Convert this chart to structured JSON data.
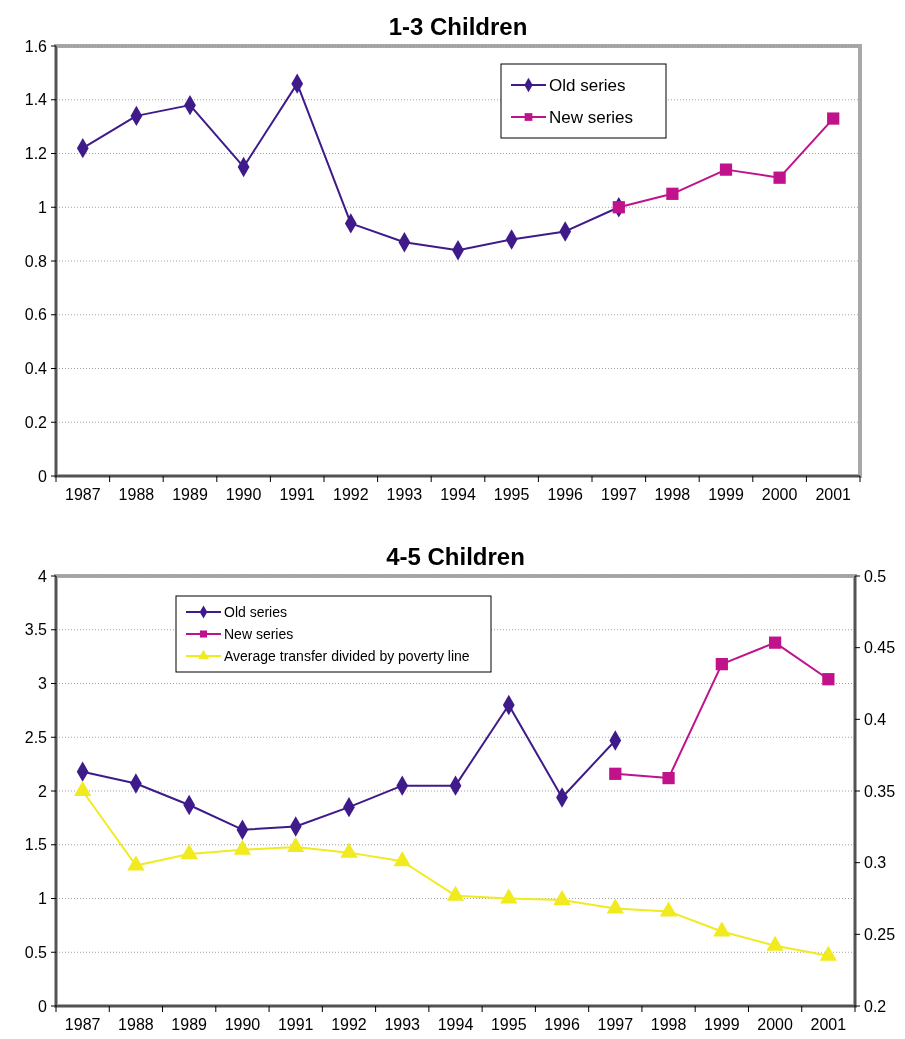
{
  "chart_data": [
    {
      "type": "line",
      "title": "1-3 Children",
      "categories": [
        "1987",
        "1988",
        "1989",
        "1990",
        "1991",
        "1992",
        "1993",
        "1994",
        "1995",
        "1996",
        "1997",
        "1998",
        "1999",
        "2000",
        "2001"
      ],
      "series": [
        {
          "name": "Old series",
          "color": "#3f1a8a",
          "marker": "diamond",
          "values": [
            1.22,
            1.34,
            1.38,
            1.15,
            1.46,
            0.94,
            0.87,
            0.84,
            0.88,
            0.91,
            1.0,
            null,
            null,
            null,
            null
          ]
        },
        {
          "name": "New series",
          "color": "#c0128a",
          "marker": "square",
          "values": [
            null,
            null,
            null,
            null,
            null,
            null,
            null,
            null,
            null,
            null,
            1.0,
            1.05,
            1.14,
            1.11,
            1.33
          ]
        }
      ],
      "ylim": [
        0,
        1.6
      ],
      "yticks": [
        0,
        0.2,
        0.4,
        0.6,
        0.8,
        1,
        1.2,
        1.4,
        1.6
      ],
      "grid": "y",
      "legend": "top right"
    },
    {
      "type": "line",
      "title": "4-5 Children",
      "categories": [
        "1987",
        "1988",
        "1989",
        "1990",
        "1991",
        "1992",
        "1993",
        "1994",
        "1995",
        "1996",
        "1997",
        "1998",
        "1999",
        "2000",
        "2001"
      ],
      "series": [
        {
          "name": "Old series",
          "color": "#3f1a8a",
          "marker": "diamond",
          "values": [
            2.18,
            2.07,
            1.87,
            1.64,
            1.67,
            1.85,
            2.05,
            2.05,
            2.8,
            1.94,
            2.47,
            null,
            null,
            null,
            null
          ]
        },
        {
          "name": "New series",
          "color": "#c0128a",
          "marker": "square",
          "values": [
            null,
            null,
            null,
            null,
            null,
            null,
            null,
            null,
            null,
            null,
            2.16,
            2.12,
            3.18,
            3.38,
            3.04
          ]
        },
        {
          "name": "Average transfer divided by poverty line",
          "color": "#f0ea1e",
          "marker": "triangle",
          "axis": "y2",
          "values": [
            0.35,
            0.298,
            0.306,
            0.309,
            0.311,
            0.307,
            0.301,
            0.277,
            0.275,
            0.274,
            0.268,
            0.266,
            0.252,
            0.242,
            0.235
          ]
        }
      ],
      "ylim": [
        0,
        4
      ],
      "yticks": [
        0,
        0.5,
        1,
        1.5,
        2,
        2.5,
        3,
        3.5,
        4
      ],
      "y2lim": [
        0.2,
        0.5
      ],
      "y2ticks": [
        0.2,
        0.25,
        0.3,
        0.35,
        0.4,
        0.45,
        0.5
      ],
      "grid": "y",
      "legend": "top left"
    }
  ]
}
